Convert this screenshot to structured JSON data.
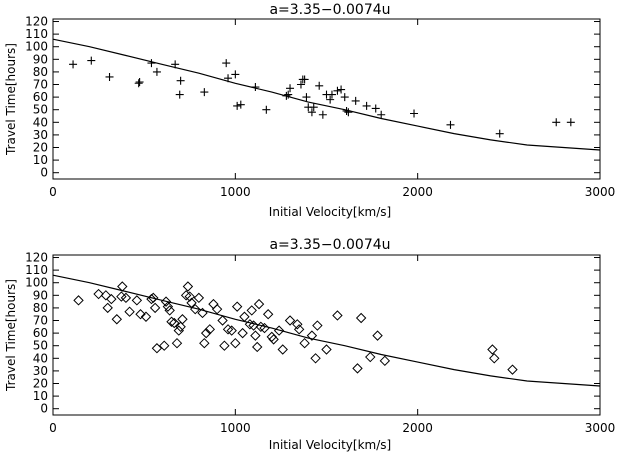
{
  "chart_data": [
    {
      "type": "scatter",
      "title": "a=3.35−0.0074u",
      "xlabel": "Initial Velocity[km/s]",
      "ylabel": "Travel Time[hours]",
      "xlim": [
        0,
        3000
      ],
      "ylim": [
        -5,
        122
      ],
      "x_ticks": [
        0,
        1000,
        2000,
        3000
      ],
      "y_ticks": [
        0,
        10,
        20,
        30,
        40,
        50,
        60,
        70,
        80,
        90,
        100,
        110,
        120
      ],
      "marker": "plus",
      "grid": false,
      "points": [
        [
          110,
          86
        ],
        [
          210,
          89
        ],
        [
          310,
          76
        ],
        [
          470,
          71
        ],
        [
          475,
          72
        ],
        [
          540,
          87
        ],
        [
          570,
          80
        ],
        [
          670,
          86
        ],
        [
          695,
          62
        ],
        [
          700,
          73
        ],
        [
          830,
          64
        ],
        [
          950,
          87
        ],
        [
          960,
          75
        ],
        [
          1000,
          78
        ],
        [
          1010,
          53
        ],
        [
          1030,
          54
        ],
        [
          1110,
          68
        ],
        [
          1170,
          50
        ],
        [
          1280,
          61
        ],
        [
          1290,
          62
        ],
        [
          1300,
          67
        ],
        [
          1360,
          70
        ],
        [
          1370,
          74
        ],
        [
          1380,
          74
        ],
        [
          1390,
          60
        ],
        [
          1400,
          52
        ],
        [
          1420,
          48
        ],
        [
          1430,
          52
        ],
        [
          1460,
          69
        ],
        [
          1480,
          46
        ],
        [
          1500,
          62
        ],
        [
          1520,
          58
        ],
        [
          1530,
          62
        ],
        [
          1560,
          65
        ],
        [
          1580,
          66
        ],
        [
          1600,
          60
        ],
        [
          1610,
          49
        ],
        [
          1620,
          48
        ],
        [
          1660,
          57
        ],
        [
          1720,
          53
        ],
        [
          1770,
          51
        ],
        [
          1800,
          46
        ],
        [
          1980,
          47
        ],
        [
          2180,
          38
        ],
        [
          2450,
          31
        ],
        [
          2760,
          40
        ],
        [
          2840,
          40
        ]
      ],
      "model_curve": {
        "x": [
          0,
          200,
          400,
          600,
          800,
          1000,
          1200,
          1400,
          1600,
          1800,
          2000,
          2200,
          2400,
          2600,
          2800,
          3000
        ],
        "y": [
          106,
          100,
          93,
          86,
          79,
          71,
          64,
          56,
          50,
          43,
          37,
          31,
          26,
          22,
          20,
          18
        ]
      }
    },
    {
      "type": "scatter",
      "title": "a=3.35−0.0074u",
      "xlabel": "Initial Velocity[km/s]",
      "ylabel": "Travel Time[hours]",
      "xlim": [
        0,
        3000
      ],
      "ylim": [
        -5,
        122
      ],
      "x_ticks": [
        0,
        1000,
        2000,
        3000
      ],
      "y_ticks": [
        0,
        10,
        20,
        30,
        40,
        50,
        60,
        70,
        80,
        90,
        100,
        110,
        120
      ],
      "marker": "diamond",
      "grid": false,
      "points": [
        [
          140,
          86
        ],
        [
          250,
          91
        ],
        [
          290,
          90
        ],
        [
          300,
          80
        ],
        [
          320,
          87
        ],
        [
          350,
          71
        ],
        [
          375,
          89
        ],
        [
          380,
          97
        ],
        [
          400,
          88
        ],
        [
          420,
          77
        ],
        [
          460,
          86
        ],
        [
          480,
          75
        ],
        [
          510,
          73
        ],
        [
          540,
          87
        ],
        [
          550,
          88
        ],
        [
          560,
          80
        ],
        [
          570,
          48
        ],
        [
          610,
          50
        ],
        [
          620,
          85
        ],
        [
          630,
          81
        ],
        [
          640,
          78
        ],
        [
          650,
          69
        ],
        [
          665,
          68
        ],
        [
          680,
          52
        ],
        [
          690,
          62
        ],
        [
          700,
          65
        ],
        [
          710,
          71
        ],
        [
          730,
          90
        ],
        [
          740,
          97
        ],
        [
          750,
          89
        ],
        [
          760,
          84
        ],
        [
          780,
          79
        ],
        [
          800,
          88
        ],
        [
          820,
          76
        ],
        [
          830,
          52
        ],
        [
          840,
          60
        ],
        [
          860,
          63
        ],
        [
          880,
          83
        ],
        [
          900,
          79
        ],
        [
          930,
          70
        ],
        [
          940,
          50
        ],
        [
          960,
          63
        ],
        [
          980,
          62
        ],
        [
          1000,
          52
        ],
        [
          1010,
          81
        ],
        [
          1040,
          60
        ],
        [
          1050,
          73
        ],
        [
          1080,
          67
        ],
        [
          1090,
          78
        ],
        [
          1100,
          66
        ],
        [
          1110,
          58
        ],
        [
          1120,
          49
        ],
        [
          1130,
          83
        ],
        [
          1140,
          65
        ],
        [
          1160,
          64
        ],
        [
          1180,
          75
        ],
        [
          1200,
          57
        ],
        [
          1210,
          55
        ],
        [
          1240,
          62
        ],
        [
          1260,
          47
        ],
        [
          1300,
          70
        ],
        [
          1340,
          67
        ],
        [
          1350,
          63
        ],
        [
          1380,
          52
        ],
        [
          1420,
          58
        ],
        [
          1440,
          40
        ],
        [
          1450,
          66
        ],
        [
          1500,
          47
        ],
        [
          1560,
          74
        ],
        [
          1670,
          32
        ],
        [
          1690,
          72
        ],
        [
          1740,
          41
        ],
        [
          1780,
          58
        ],
        [
          1820,
          38
        ],
        [
          2410,
          47
        ],
        [
          2420,
          40
        ],
        [
          2520,
          31
        ]
      ],
      "model_curve": {
        "x": [
          0,
          200,
          400,
          600,
          800,
          1000,
          1200,
          1400,
          1600,
          1800,
          2000,
          2200,
          2400,
          2600,
          2800,
          3000
        ],
        "y": [
          106,
          100,
          93,
          86,
          79,
          71,
          64,
          56,
          50,
          43,
          37,
          31,
          26,
          22,
          20,
          18
        ]
      }
    }
  ]
}
